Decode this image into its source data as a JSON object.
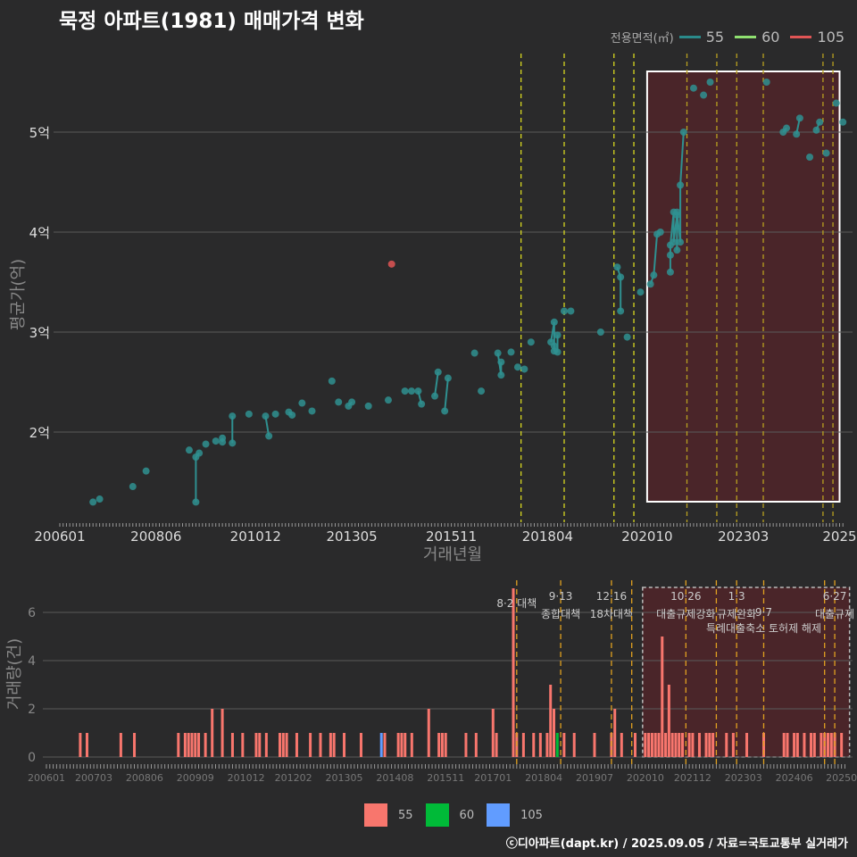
{
  "title": "묵정 아파트(1981) 매매가격 변화",
  "footer": "ⓒ디아파트(dapt.kr) / 2025.09.05 / 자료=국토교통부 실거래가",
  "legend_top": {
    "title": "전용면적(㎡)",
    "items": [
      {
        "label": "55",
        "color": "#2a8a8a"
      },
      {
        "label": "60",
        "color": "#8fe070"
      },
      {
        "label": "105",
        "color": "#e05555"
      }
    ]
  },
  "legend_bottom": {
    "items": [
      {
        "label": "55",
        "color": "#f8766d"
      },
      {
        "label": "60",
        "color": "#00ba38"
      },
      {
        "label": "105",
        "color": "#619cff"
      }
    ]
  },
  "chart_data": [
    {
      "type": "scatter",
      "title": "묵정 아파트(1981) 매매가격 변화",
      "xlabel": "거래년월",
      "ylabel": "평균가(억)",
      "x_ticks": [
        "200601",
        "200806",
        "201012",
        "201305",
        "201511",
        "201804",
        "202010",
        "202303",
        "2025"
      ],
      "y_ticks": [
        {
          "v": 2,
          "label": "2억"
        },
        {
          "v": 3,
          "label": "3억"
        },
        {
          "v": 4,
          "label": "4억"
        },
        {
          "v": 5,
          "label": "5억"
        }
      ],
      "highlight": {
        "from": "202010",
        "to": "202508"
      },
      "series": [
        {
          "name": "55",
          "points": [
            [
              "200611",
              1.3
            ],
            [
              "200701",
              1.33
            ],
            [
              "200711",
              1.455
            ],
            [
              "200803",
              1.61
            ],
            [
              "200904",
              1.82
            ],
            [
              "200906",
              1.3
            ],
            [
              "200906",
              1.75
            ],
            [
              "200907",
              1.79
            ],
            [
              "200909",
              1.88
            ],
            [
              "200912",
              1.91
            ],
            [
              "201002",
              1.94
            ],
            [
              "201002",
              1.9
            ],
            [
              "201005",
              1.89
            ],
            [
              "201005",
              2.16
            ],
            [
              "201010",
              2.18
            ],
            [
              "201103",
              2.16
            ],
            [
              "201104",
              1.96
            ],
            [
              "201106",
              2.18
            ],
            [
              "201110",
              2.2
            ],
            [
              "201111",
              2.17
            ],
            [
              "201202",
              2.29
            ],
            [
              "201205",
              2.21
            ],
            [
              "201211",
              2.51
            ],
            [
              "201301",
              2.3
            ],
            [
              "201304",
              2.26
            ],
            [
              "201305",
              2.3
            ],
            [
              "201310",
              2.26
            ],
            [
              "201404",
              2.32
            ],
            [
              "201409",
              2.41
            ],
            [
              "201411",
              2.41
            ],
            [
              "201501",
              2.41
            ],
            [
              "201502",
              2.28
            ],
            [
              "201506",
              2.36
            ],
            [
              "201507",
              2.6
            ],
            [
              "201509",
              2.21
            ],
            [
              "201510",
              2.54
            ],
            [
              "201606",
              2.79
            ],
            [
              "201608",
              2.41
            ],
            [
              "201701",
              2.79
            ],
            [
              "201702",
              2.57
            ],
            [
              "201702",
              2.7
            ],
            [
              "201705",
              2.8
            ],
            [
              "201707",
              2.65
            ],
            [
              "201709",
              2.63
            ],
            [
              "201711",
              2.9
            ],
            [
              "201805",
              2.9
            ],
            [
              "201806",
              3.1
            ],
            [
              "201806",
              2.86
            ],
            [
              "201806",
              2.81
            ],
            [
              "201807",
              2.8
            ],
            [
              "201807",
              2.97
            ],
            [
              "201809",
              3.21
            ],
            [
              "201811",
              3.21
            ],
            [
              "201908",
              3.0
            ],
            [
              "202001",
              3.65
            ],
            [
              "202002",
              3.55
            ],
            [
              "202002",
              3.21
            ],
            [
              "202004",
              2.95
            ],
            [
              "202008",
              3.4
            ],
            [
              "202011",
              3.48
            ],
            [
              "202012",
              3.57
            ],
            [
              "202101",
              3.98
            ],
            [
              "202102",
              4.0
            ],
            [
              "202105",
              3.6
            ],
            [
              "202105",
              3.77
            ],
            [
              "202105",
              3.87
            ],
            [
              "202106",
              4.2
            ],
            [
              "202106",
              3.9
            ],
            [
              "202107",
              4.17
            ],
            [
              "202107",
              3.82
            ],
            [
              "202107",
              4.2
            ],
            [
              "202108",
              3.9
            ],
            [
              "202108",
              4.47
            ],
            [
              "202109",
              5.0
            ],
            [
              "202112",
              5.44
            ],
            [
              "202203",
              5.37
            ],
            [
              "202205",
              5.5
            ],
            [
              "202310",
              5.5
            ],
            [
              "202403",
              5.0
            ],
            [
              "202404",
              5.04
            ],
            [
              "202407",
              4.98
            ],
            [
              "202408",
              5.14
            ],
            [
              "202411",
              4.75
            ],
            [
              "202501",
              5.02
            ],
            [
              "202502",
              5.1
            ],
            [
              "202504",
              4.79
            ],
            [
              "202507",
              5.29
            ],
            [
              "202509",
              5.1
            ]
          ]
        },
        {
          "name": "60",
          "points": []
        },
        {
          "name": "105",
          "points": [
            [
              "201405",
              3.68
            ]
          ]
        }
      ]
    },
    {
      "type": "bar",
      "ylabel": "거래량(건)",
      "x_ticks": [
        "200601",
        "200703",
        "200806",
        "200909",
        "201012",
        "201202",
        "201305",
        "201408",
        "201511",
        "201701",
        "201804",
        "201907",
        "202010",
        "202112",
        "202303",
        "202406",
        "20250"
      ],
      "y_ticks": [
        0,
        2,
        4,
        6
      ],
      "highlight": {
        "from": "202010",
        "to": "202508"
      },
      "bars": [
        [
          "200611",
          1,
          "55"
        ],
        [
          "200701",
          1,
          "55"
        ],
        [
          "200711",
          1,
          "55"
        ],
        [
          "200803",
          1,
          "55"
        ],
        [
          "200904",
          1,
          "55"
        ],
        [
          "200906",
          1,
          "55"
        ],
        [
          "200907",
          1,
          "55"
        ],
        [
          "200908",
          1,
          "55"
        ],
        [
          "200909",
          1,
          "55"
        ],
        [
          "200910",
          1,
          "55"
        ],
        [
          "200912",
          1,
          "55"
        ],
        [
          "201002",
          2,
          "55"
        ],
        [
          "201005",
          2,
          "55"
        ],
        [
          "201008",
          1,
          "55"
        ],
        [
          "201011",
          1,
          "55"
        ],
        [
          "201103",
          1,
          "55"
        ],
        [
          "201104",
          1,
          "55"
        ],
        [
          "201106",
          1,
          "55"
        ],
        [
          "201110",
          1,
          "55"
        ],
        [
          "201111",
          1,
          "55"
        ],
        [
          "201112",
          1,
          "55"
        ],
        [
          "201203",
          1,
          "55"
        ],
        [
          "201207",
          1,
          "55"
        ],
        [
          "201210",
          1,
          "55"
        ],
        [
          "201301",
          1,
          "55"
        ],
        [
          "201302",
          1,
          "55"
        ],
        [
          "201305",
          1,
          "55"
        ],
        [
          "201310",
          1,
          "55"
        ],
        [
          "201404",
          1,
          "105"
        ],
        [
          "201405",
          1,
          "55"
        ],
        [
          "201409",
          1,
          "55"
        ],
        [
          "201410",
          1,
          "55"
        ],
        [
          "201411",
          1,
          "55"
        ],
        [
          "201501",
          1,
          "55"
        ],
        [
          "201506",
          2,
          "55"
        ],
        [
          "201509",
          1,
          "55"
        ],
        [
          "201510",
          1,
          "55"
        ],
        [
          "201511",
          1,
          "55"
        ],
        [
          "201605",
          1,
          "55"
        ],
        [
          "201608",
          1,
          "55"
        ],
        [
          "201701",
          2,
          "55"
        ],
        [
          "201702",
          1,
          "55"
        ],
        [
          "201707",
          7,
          "55"
        ],
        [
          "201708",
          1,
          "55"
        ],
        [
          "201710",
          1,
          "55"
        ],
        [
          "201801",
          1,
          "55"
        ],
        [
          "201803",
          1,
          "55"
        ],
        [
          "201805",
          1,
          "55"
        ],
        [
          "201806",
          3,
          "55"
        ],
        [
          "201807",
          2,
          "55"
        ],
        [
          "201808",
          1,
          "60"
        ],
        [
          "201810",
          1,
          "55"
        ],
        [
          "201901",
          1,
          "55"
        ],
        [
          "201907",
          1,
          "55"
        ],
        [
          "201912",
          1,
          "55"
        ],
        [
          "202001",
          2,
          "55"
        ],
        [
          "202003",
          1,
          "55"
        ],
        [
          "202007",
          1,
          "55"
        ],
        [
          "202010",
          1,
          "55"
        ],
        [
          "202011",
          1,
          "55"
        ],
        [
          "202012",
          1,
          "55"
        ],
        [
          "202101",
          1,
          "55"
        ],
        [
          "202102",
          1,
          "55"
        ],
        [
          "202103",
          5,
          "55"
        ],
        [
          "202104",
          1,
          "55"
        ],
        [
          "202105",
          3,
          "55"
        ],
        [
          "202106",
          1,
          "55"
        ],
        [
          "202107",
          1,
          "55"
        ],
        [
          "202108",
          1,
          "55"
        ],
        [
          "202109",
          1,
          "55"
        ],
        [
          "202111",
          1,
          "55"
        ],
        [
          "202112",
          1,
          "55"
        ],
        [
          "202202",
          1,
          "55"
        ],
        [
          "202204",
          1,
          "55"
        ],
        [
          "202205",
          1,
          "55"
        ],
        [
          "202206",
          1,
          "55"
        ],
        [
          "202210",
          1,
          "55"
        ],
        [
          "202212",
          1,
          "55"
        ],
        [
          "202304",
          1,
          "55"
        ],
        [
          "202309",
          1,
          "55"
        ],
        [
          "202403",
          1,
          "55"
        ],
        [
          "202404",
          1,
          "55"
        ],
        [
          "202406",
          1,
          "55"
        ],
        [
          "202407",
          1,
          "55"
        ],
        [
          "202409",
          1,
          "55"
        ],
        [
          "202411",
          1,
          "55"
        ],
        [
          "202412",
          1,
          "55"
        ],
        [
          "202502",
          1,
          "55"
        ],
        [
          "202503",
          1,
          "55"
        ],
        [
          "202504",
          1,
          "55"
        ],
        [
          "202505",
          1,
          "55"
        ],
        [
          "202506",
          1,
          "55"
        ],
        [
          "202508",
          1,
          "55"
        ]
      ]
    }
  ],
  "events": [
    {
      "date": "201708",
      "num": "8·2 대책",
      "text": ""
    },
    {
      "date": "201809",
      "num": "9·13",
      "text": "종합대책"
    },
    {
      "date": "201912",
      "num": "12·16",
      "text": "18차대책"
    },
    {
      "date": "202006",
      "num": "",
      "text": ""
    },
    {
      "date": "202110",
      "num": "10·26",
      "text": "대출규제강화"
    },
    {
      "date": "202207",
      "num": "",
      "text": ""
    },
    {
      "date": "202301",
      "num": "1·3",
      "text": "규제완화"
    },
    {
      "date": "202309",
      "num": "9·7",
      "text": "특례대출축소 토허제 해제"
    },
    {
      "date": "202503",
      "num": "",
      "text": ""
    },
    {
      "date": "202506",
      "num": "6·27",
      "text": "대출규제"
    }
  ]
}
